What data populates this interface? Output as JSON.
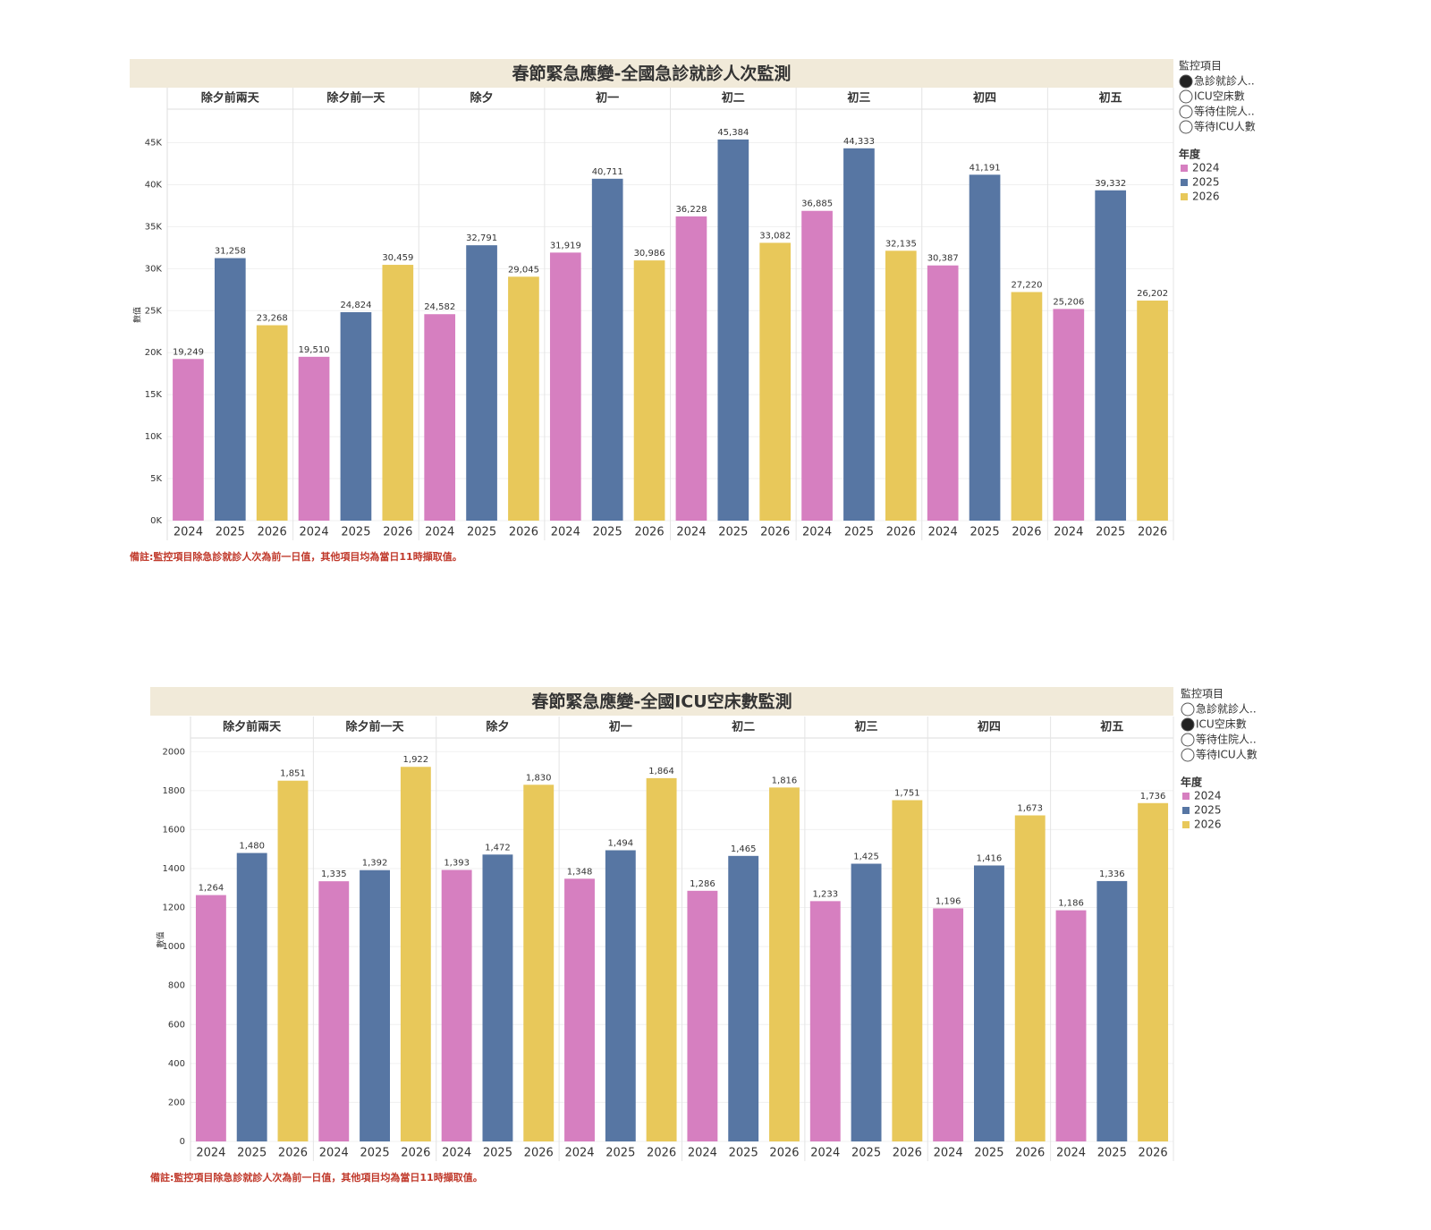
{
  "chart_data": [
    {
      "type": "bar",
      "title": "春節緊急應變-全國急診就診人次監測",
      "categories": [
        "除夕前兩天",
        "除夕前一天",
        "除夕",
        "初一",
        "初二",
        "初三",
        "初四",
        "初五"
      ],
      "series": [
        {
          "name": "2024",
          "color": "#d67fc0",
          "values": [
            19249,
            19510,
            24582,
            31919,
            36228,
            36885,
            30387,
            25206
          ],
          "value_labels": [
            "19,249",
            "19,510",
            "24,582",
            "31,919",
            "36,228",
            "36,885",
            "30,387",
            "25,206"
          ]
        },
        {
          "name": "2025",
          "color": "#5776a3",
          "values": [
            31258,
            24824,
            32791,
            40711,
            45384,
            44333,
            41191,
            39332
          ],
          "value_labels": [
            "31,258",
            "24,824",
            "32,791",
            "40,711",
            "45,384",
            "44,333",
            "41,191",
            "39,332"
          ]
        },
        {
          "name": "2026",
          "color": "#e8c85a",
          "values": [
            23268,
            30459,
            29045,
            30986,
            33082,
            32135,
            27220,
            26202
          ],
          "value_labels": [
            "23,268",
            "30,459",
            "29,045",
            "30,986",
            "33,082",
            "32,135",
            "27,220",
            "26,202"
          ]
        }
      ],
      "y_label": "數值",
      "ylim": [
        0,
        49000
      ],
      "yticks": [
        {
          "value": 0,
          "label": "0K"
        },
        {
          "value": 5000,
          "label": "5K"
        },
        {
          "value": 10000,
          "label": "10K"
        },
        {
          "value": 15000,
          "label": "15K"
        },
        {
          "value": 20000,
          "label": "20K"
        },
        {
          "value": 25000,
          "label": "25K"
        },
        {
          "value": 30000,
          "label": "30K"
        },
        {
          "value": 35000,
          "label": "35K"
        },
        {
          "value": 40000,
          "label": "40K"
        },
        {
          "value": 45000,
          "label": "45K"
        }
      ],
      "grid": true,
      "note": "備註:監控項目除急診就診人次為前一日值，其他項目均為當日11時擷取值。",
      "filter_title": "監控項目",
      "filter_items": [
        "急診就診人..",
        "ICU空床數",
        "等待住院人..",
        "等待ICU人數"
      ],
      "filter_selected": 0,
      "legend_title": "年度"
    },
    {
      "type": "bar",
      "title": "春節緊急應變-全國ICU空床數監測",
      "categories": [
        "除夕前兩天",
        "除夕前一天",
        "除夕",
        "初一",
        "初二",
        "初三",
        "初四",
        "初五"
      ],
      "series": [
        {
          "name": "2024",
          "color": "#d67fc0",
          "values": [
            1264,
            1335,
            1393,
            1348,
            1286,
            1233,
            1196,
            1186
          ],
          "value_labels": [
            "1,264",
            "1,335",
            "1,393",
            "1,348",
            "1,286",
            "1,233",
            "1,196",
            "1,186"
          ]
        },
        {
          "name": "2025",
          "color": "#5776a3",
          "values": [
            1480,
            1392,
            1472,
            1494,
            1465,
            1425,
            1416,
            1336
          ],
          "value_labels": [
            "1,480",
            "1,392",
            "1,472",
            "1,494",
            "1,465",
            "1,425",
            "1,416",
            "1,336"
          ]
        },
        {
          "name": "2026",
          "color": "#e8c85a",
          "values": [
            1851,
            1922,
            1830,
            1864,
            1816,
            1751,
            1673,
            1736
          ],
          "value_labels": [
            "1,851",
            "1,922",
            "1,830",
            "1,864",
            "1,816",
            "1,751",
            "1,673",
            "1,736"
          ]
        }
      ],
      "y_label": "數值",
      "ylim": [
        0,
        2070
      ],
      "yticks": [
        0,
        200,
        400,
        600,
        800,
        1000,
        1200,
        1400,
        1600,
        1800,
        2000
      ],
      "grid": true,
      "note": "備註:監控項目除急診就診人次為前一日值，其他項目均為當日11時擷取值。",
      "filter_title": "監控項目",
      "filter_items": [
        "急診就診人..",
        "ICU空床數",
        "等待住院人..",
        "等待ICU人數"
      ],
      "filter_selected": 1,
      "legend_title": "年度"
    }
  ]
}
